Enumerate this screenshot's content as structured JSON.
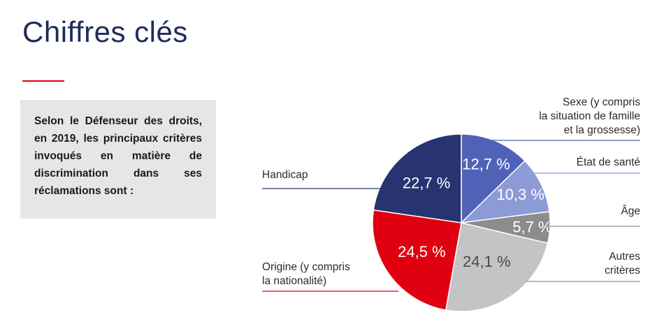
{
  "page": {
    "title": "Chiffres clés",
    "intro": "Selon le Défenseur des droits, en 2019, les principaux critères invoqués en matière de discrimination dans ses réclamations sont :"
  },
  "colors": {
    "accent_red": "#e1000f",
    "navy": "#1f2a5c",
    "box_gray": "#e6e6e8"
  },
  "chart_data": {
    "type": "pie",
    "unit": "%",
    "slices": [
      {
        "label": "Sexe (y compris la situation de famille et la grossesse)",
        "label_lines": [
          "Sexe (y compris",
          "la situation de famille",
          "et la grossesse)"
        ],
        "display": "12,7 %",
        "value": 12.7,
        "color": "#5062b8",
        "text_color": "#ffffff"
      },
      {
        "label": "État de santé",
        "label_lines": [
          "État de santé"
        ],
        "display": "10,3 %",
        "value": 10.3,
        "color": "#8c9ad6",
        "text_color": "#ffffff"
      },
      {
        "label": "Âge",
        "label_lines": [
          "Âge"
        ],
        "display": "5,7 %",
        "value": 5.7,
        "color": "#8c8c8c",
        "text_color": "#ffffff"
      },
      {
        "label": "Autres critères",
        "label_lines": [
          "Autres",
          "critères"
        ],
        "display": "24,1 %",
        "value": 24.1,
        "color": "#c4c4c4",
        "text_color": "#4a4a4a"
      },
      {
        "label": "Origine (y compris la nationalité)",
        "label_lines": [
          "Origine (y compris",
          "la nationalité)"
        ],
        "display": "24,5 %",
        "value": 24.5,
        "color": "#e1000f",
        "text_color": "#ffffff"
      },
      {
        "label": "Handicap",
        "label_lines": [
          "Handicap"
        ],
        "display": "22,7 %",
        "value": 22.7,
        "color": "#273470",
        "text_color": "#ffffff"
      }
    ]
  }
}
